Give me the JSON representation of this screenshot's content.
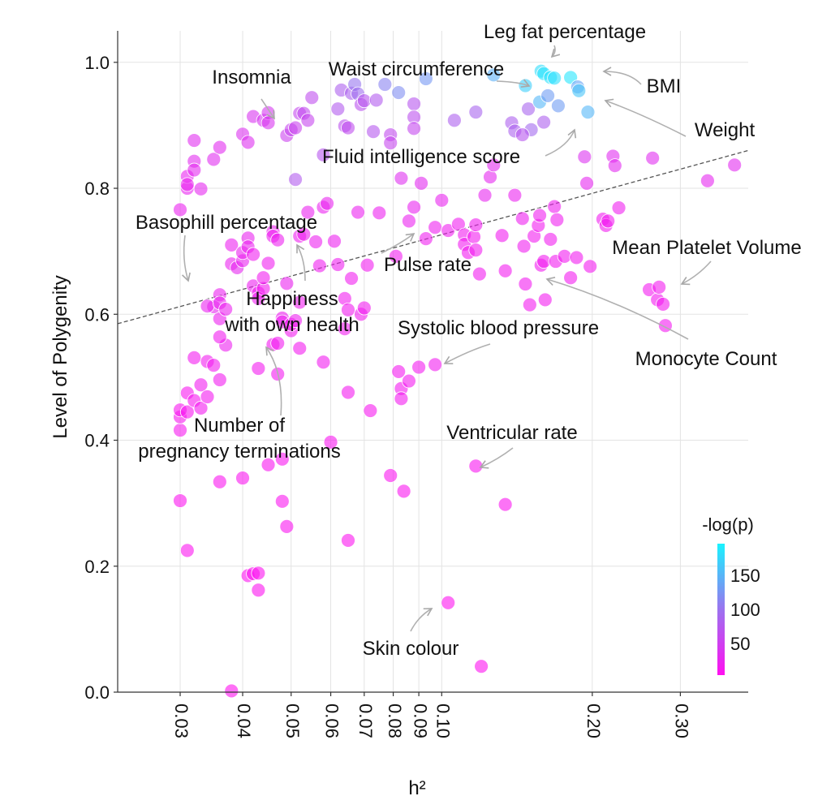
{
  "chart_data": {
    "type": "scatter",
    "xlabel": "h²",
    "ylabel": "Level of Polygenity",
    "x_scale": "log",
    "xlim": [
      0.0225,
      0.41
    ],
    "ylim": [
      0.0,
      1.05
    ],
    "x_ticks": [
      0.03,
      0.04,
      0.05,
      0.06,
      0.07,
      0.08,
      0.09,
      0.1,
      0.2,
      0.3
    ],
    "x_tick_labels": [
      "0.03",
      "0.04",
      "0.05",
      "0.06",
      "0.07",
      "0.08",
      "0.09",
      "0.10",
      "0.20",
      "0.30"
    ],
    "y_ticks": [
      0.0,
      0.2,
      0.4,
      0.6,
      0.8,
      1.0
    ],
    "y_tick_labels": [
      "0.0",
      "0.2",
      "0.4",
      "0.6",
      "0.8",
      "1.0"
    ],
    "grid": true,
    "colorbar": {
      "title": "-log(p)",
      "ticks": [
        50,
        100,
        150
      ],
      "tick_labels": [
        "50",
        "100",
        "150"
      ],
      "range": [
        1,
        195
      ],
      "color_low": "#ff10f0",
      "color_high": "#19f3ff"
    },
    "trend_line": {
      "points": [
        [
          0.0225,
          0.585
        ],
        [
          0.41,
          0.86
        ]
      ],
      "color": "#555555",
      "style": "dashed"
    },
    "points": [
      [
        0.03,
        0.766,
        20
      ],
      [
        0.031,
        0.8,
        22
      ],
      [
        0.031,
        0.819,
        22
      ],
      [
        0.031,
        0.806,
        21
      ],
      [
        0.032,
        0.876,
        30
      ],
      [
        0.032,
        0.843,
        29
      ],
      [
        0.032,
        0.829,
        27
      ],
      [
        0.033,
        0.799,
        25
      ],
      [
        0.035,
        0.846,
        30
      ],
      [
        0.036,
        0.865,
        28
      ],
      [
        0.04,
        0.886,
        35
      ],
      [
        0.041,
        0.873,
        33
      ],
      [
        0.042,
        0.914,
        38
      ],
      [
        0.044,
        0.908,
        40
      ],
      [
        0.045,
        0.92,
        42
      ],
      [
        0.045,
        0.904,
        38
      ],
      [
        0.049,
        0.884,
        50
      ],
      [
        0.05,
        0.893,
        55
      ],
      [
        0.051,
        0.896,
        52
      ],
      [
        0.052,
        0.919,
        58
      ],
      [
        0.053,
        0.919,
        60
      ],
      [
        0.054,
        0.908,
        56
      ],
      [
        0.055,
        0.944,
        62
      ],
      [
        0.058,
        0.853,
        70
      ],
      [
        0.062,
        0.926,
        75
      ],
      [
        0.063,
        0.956,
        80
      ],
      [
        0.064,
        0.899,
        65
      ],
      [
        0.065,
        0.896,
        62
      ],
      [
        0.066,
        0.951,
        82
      ],
      [
        0.067,
        0.965,
        100
      ],
      [
        0.068,
        0.95,
        95
      ],
      [
        0.069,
        0.933,
        68
      ],
      [
        0.07,
        0.939,
        70
      ],
      [
        0.073,
        0.89,
        72
      ],
      [
        0.074,
        0.94,
        75
      ],
      [
        0.077,
        0.965,
        110
      ],
      [
        0.079,
        0.885,
        60
      ],
      [
        0.082,
        0.952,
        118
      ],
      [
        0.088,
        0.934,
        70
      ],
      [
        0.088,
        0.913,
        65
      ],
      [
        0.088,
        0.895,
        58
      ],
      [
        0.093,
        0.974,
        125
      ],
      [
        0.051,
        0.814,
        75
      ],
      [
        0.079,
        0.872,
        55
      ],
      [
        0.106,
        0.908,
        80
      ],
      [
        0.117,
        0.921,
        85
      ],
      [
        0.127,
        0.98,
        145
      ],
      [
        0.138,
        0.904,
        80
      ],
      [
        0.14,
        0.891,
        82
      ],
      [
        0.147,
        0.963,
        168
      ],
      [
        0.149,
        0.926,
        85
      ],
      [
        0.151,
        0.893,
        90
      ],
      [
        0.157,
        0.937,
        150
      ],
      [
        0.158,
        0.986,
        178
      ],
      [
        0.16,
        0.982,
        182
      ],
      [
        0.163,
        0.947,
        130
      ],
      [
        0.165,
        0.976,
        183
      ],
      [
        0.168,
        0.975,
        180
      ],
      [
        0.171,
        0.931,
        130
      ],
      [
        0.181,
        0.976,
        185
      ],
      [
        0.187,
        0.961,
        135
      ],
      [
        0.188,
        0.955,
        160
      ],
      [
        0.196,
        0.921,
        150
      ],
      [
        0.16,
        0.905,
        80
      ],
      [
        0.145,
        0.885,
        70
      ],
      [
        0.03,
        0.416,
        10
      ],
      [
        0.03,
        0.437,
        10
      ],
      [
        0.03,
        0.448,
        8
      ],
      [
        0.031,
        0.475,
        8
      ],
      [
        0.031,
        0.445,
        9
      ],
      [
        0.032,
        0.531,
        12
      ],
      [
        0.032,
        0.463,
        10
      ],
      [
        0.033,
        0.488,
        14
      ],
      [
        0.033,
        0.451,
        12
      ],
      [
        0.034,
        0.469,
        12
      ],
      [
        0.034,
        0.525,
        15
      ],
      [
        0.035,
        0.519,
        15
      ],
      [
        0.036,
        0.496,
        14
      ],
      [
        0.037,
        0.551,
        18
      ],
      [
        0.036,
        0.593,
        18
      ],
      [
        0.035,
        0.612,
        25
      ],
      [
        0.034,
        0.613,
        22
      ],
      [
        0.036,
        0.631,
        20
      ],
      [
        0.036,
        0.618,
        21
      ],
      [
        0.037,
        0.608,
        20
      ],
      [
        0.038,
        0.68,
        20
      ],
      [
        0.038,
        0.71,
        18
      ],
      [
        0.039,
        0.674,
        25
      ],
      [
        0.04,
        0.685,
        22
      ],
      [
        0.04,
        0.698,
        20
      ],
      [
        0.041,
        0.721,
        22
      ],
      [
        0.041,
        0.707,
        20
      ],
      [
        0.042,
        0.695,
        16
      ],
      [
        0.042,
        0.645,
        18
      ],
      [
        0.043,
        0.634,
        15
      ],
      [
        0.043,
        0.625,
        17
      ],
      [
        0.044,
        0.641,
        14
      ],
      [
        0.044,
        0.658,
        15
      ],
      [
        0.045,
        0.681,
        16
      ],
      [
        0.046,
        0.731,
        17
      ],
      [
        0.046,
        0.724,
        18
      ],
      [
        0.047,
        0.718,
        19
      ],
      [
        0.048,
        0.594,
        18
      ],
      [
        0.048,
        0.588,
        19
      ],
      [
        0.049,
        0.649,
        20
      ],
      [
        0.05,
        0.574,
        12
      ],
      [
        0.05,
        0.584,
        12
      ],
      [
        0.051,
        0.59,
        18
      ],
      [
        0.052,
        0.619,
        16
      ],
      [
        0.052,
        0.724,
        17
      ],
      [
        0.053,
        0.727,
        17
      ],
      [
        0.054,
        0.762,
        20
      ],
      [
        0.056,
        0.715,
        18
      ],
      [
        0.057,
        0.677,
        16
      ],
      [
        0.058,
        0.77,
        20
      ],
      [
        0.059,
        0.776,
        22
      ],
      [
        0.061,
        0.716,
        18
      ],
      [
        0.062,
        0.679,
        17
      ],
      [
        0.064,
        0.625,
        15
      ],
      [
        0.065,
        0.607,
        15
      ],
      [
        0.066,
        0.657,
        15
      ],
      [
        0.068,
        0.762,
        20
      ],
      [
        0.069,
        0.6,
        15
      ],
      [
        0.07,
        0.61,
        15
      ],
      [
        0.071,
        0.678,
        15
      ],
      [
        0.075,
        0.761,
        18
      ],
      [
        0.081,
        0.692,
        15
      ],
      [
        0.083,
        0.816,
        32
      ],
      [
        0.086,
        0.748,
        20
      ],
      [
        0.088,
        0.77,
        22
      ],
      [
        0.091,
        0.808,
        28
      ],
      [
        0.093,
        0.72,
        16
      ],
      [
        0.097,
        0.738,
        17
      ],
      [
        0.1,
        0.781,
        22
      ],
      [
        0.103,
        0.733,
        16
      ],
      [
        0.108,
        0.743,
        16
      ],
      [
        0.111,
        0.726,
        15
      ],
      [
        0.111,
        0.711,
        15
      ],
      [
        0.113,
        0.698,
        14
      ],
      [
        0.116,
        0.723,
        15
      ],
      [
        0.117,
        0.742,
        16
      ],
      [
        0.117,
        0.702,
        15
      ],
      [
        0.119,
        0.664,
        14
      ],
      [
        0.122,
        0.789,
        24
      ],
      [
        0.125,
        0.818,
        25
      ],
      [
        0.127,
        0.837,
        28
      ],
      [
        0.132,
        0.725,
        14
      ],
      [
        0.134,
        0.669,
        13
      ],
      [
        0.14,
        0.789,
        20
      ],
      [
        0.145,
        0.752,
        17
      ],
      [
        0.146,
        0.708,
        16
      ],
      [
        0.147,
        0.648,
        14
      ],
      [
        0.15,
        0.615,
        13
      ],
      [
        0.153,
        0.724,
        15
      ],
      [
        0.156,
        0.741,
        15
      ],
      [
        0.157,
        0.757,
        16
      ],
      [
        0.158,
        0.678,
        14
      ],
      [
        0.16,
        0.684,
        14
      ],
      [
        0.161,
        0.623,
        13
      ],
      [
        0.165,
        0.719,
        15
      ],
      [
        0.168,
        0.771,
        17
      ],
      [
        0.169,
        0.684,
        14
      ],
      [
        0.17,
        0.75,
        16
      ],
      [
        0.176,
        0.692,
        14
      ],
      [
        0.181,
        0.658,
        13
      ],
      [
        0.186,
        0.69,
        14
      ],
      [
        0.193,
        0.85,
        35
      ],
      [
        0.195,
        0.808,
        25
      ],
      [
        0.198,
        0.676,
        13
      ],
      [
        0.21,
        0.751,
        15
      ],
      [
        0.213,
        0.741,
        15
      ],
      [
        0.215,
        0.748,
        15
      ],
      [
        0.22,
        0.851,
        30
      ],
      [
        0.222,
        0.836,
        28
      ],
      [
        0.226,
        0.769,
        16
      ],
      [
        0.26,
        0.639,
        12
      ],
      [
        0.264,
        0.848,
        30
      ],
      [
        0.27,
        0.623,
        12
      ],
      [
        0.272,
        0.643,
        13
      ],
      [
        0.277,
        0.616,
        12
      ],
      [
        0.28,
        0.582,
        12
      ],
      [
        0.34,
        0.812,
        25
      ],
      [
        0.385,
        0.837,
        28
      ],
      [
        0.046,
        0.552,
        12
      ],
      [
        0.047,
        0.554,
        14
      ],
      [
        0.052,
        0.546,
        12
      ],
      [
        0.058,
        0.524,
        14
      ],
      [
        0.064,
        0.577,
        15
      ],
      [
        0.047,
        0.505,
        12
      ],
      [
        0.043,
        0.514,
        12
      ],
      [
        0.036,
        0.564,
        14
      ],
      [
        0.065,
        0.476,
        12
      ],
      [
        0.072,
        0.447,
        10
      ],
      [
        0.082,
        0.509,
        12
      ],
      [
        0.083,
        0.482,
        12
      ],
      [
        0.083,
        0.466,
        12
      ],
      [
        0.086,
        0.494,
        12
      ],
      [
        0.09,
        0.516,
        13
      ],
      [
        0.097,
        0.52,
        14
      ],
      [
        0.06,
        0.397,
        8
      ],
      [
        0.04,
        0.34,
        6
      ],
      [
        0.036,
        0.334,
        6
      ],
      [
        0.03,
        0.304,
        5
      ],
      [
        0.031,
        0.225,
        5
      ],
      [
        0.045,
        0.361,
        7
      ],
      [
        0.048,
        0.37,
        7
      ],
      [
        0.048,
        0.303,
        6
      ],
      [
        0.049,
        0.263,
        6
      ],
      [
        0.065,
        0.241,
        5
      ],
      [
        0.079,
        0.344,
        6
      ],
      [
        0.084,
        0.319,
        6
      ],
      [
        0.117,
        0.359,
        7
      ],
      [
        0.134,
        0.298,
        6
      ],
      [
        0.041,
        0.185,
        4
      ],
      [
        0.042,
        0.188,
        4
      ],
      [
        0.043,
        0.189,
        4
      ],
      [
        0.043,
        0.162,
        4
      ],
      [
        0.103,
        0.142,
        3
      ],
      [
        0.12,
        0.041,
        2
      ],
      [
        0.038,
        0.002,
        1
      ]
    ],
    "annotations": [
      {
        "text": "Leg fat percentage",
        "lines": [
          "Leg fat percentage"
        ]
      },
      {
        "text": "Waist circumference",
        "lines": [
          "Waist circumference"
        ]
      },
      {
        "text": "Insomnia",
        "lines": [
          "Insomnia"
        ]
      },
      {
        "text": "BMI",
        "lines": [
          "BMI"
        ]
      },
      {
        "text": "Weight",
        "lines": [
          "Weight"
        ]
      },
      {
        "text": "Fluid intelligence score",
        "lines": [
          "Fluid intelligence score"
        ]
      },
      {
        "text": "Basophill percentage",
        "lines": [
          "Basophill percentage"
        ]
      },
      {
        "text": "Mean Platelet Volume",
        "lines": [
          "Mean Platelet Volume"
        ]
      },
      {
        "text": "Pulse rate",
        "lines": [
          "Pulse rate"
        ]
      },
      {
        "text": "Happiness with own health",
        "lines": [
          "Happiness",
          "with own health"
        ]
      },
      {
        "text": "Systolic blood pressure",
        "lines": [
          "Systolic blood pressure"
        ]
      },
      {
        "text": "Monocyte Count",
        "lines": [
          "Monocyte Count"
        ]
      },
      {
        "text": "Number of pregnancy terminations",
        "lines": [
          "Number of",
          "pregnancy terminations"
        ]
      },
      {
        "text": "Ventricular rate",
        "lines": [
          "Ventricular rate"
        ]
      },
      {
        "text": "Skin colour",
        "lines": [
          "Skin colour"
        ]
      }
    ]
  }
}
